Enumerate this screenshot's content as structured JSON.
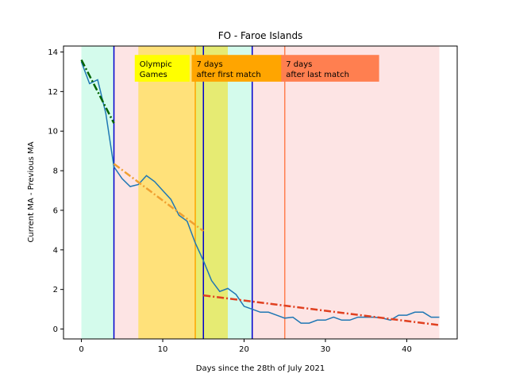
{
  "chart_data": {
    "type": "line",
    "title": "FO - Faroe Islands",
    "xlabel": "Days since the 28th of July 2021",
    "ylabel": "Current MA - Previous MA",
    "xlim": [
      -2.2,
      46.2
    ],
    "ylim": [
      -0.5,
      14.3
    ],
    "xticks": [
      0,
      10,
      20,
      30,
      40
    ],
    "yticks": [
      0,
      2,
      4,
      6,
      8,
      10,
      12,
      14
    ],
    "grid": false,
    "series": [
      {
        "color": "#1f77b4",
        "x": [
          0,
          1,
          2,
          3,
          4,
          5,
          6,
          7,
          8,
          9,
          10,
          11,
          12,
          13,
          14,
          15,
          16,
          17,
          18,
          19,
          20,
          21,
          22,
          23,
          24,
          25,
          26,
          27,
          28,
          29,
          30,
          31,
          32,
          33,
          34,
          35,
          36,
          37,
          38,
          39,
          40,
          41,
          42,
          43,
          44
        ],
        "y": [
          13.5,
          12.4,
          12.6,
          10.9,
          8.2,
          7.6,
          7.2,
          7.3,
          7.75,
          7.45,
          7.0,
          6.55,
          5.75,
          5.45,
          4.35,
          3.45,
          2.45,
          1.9,
          2.05,
          1.75,
          1.15,
          1.0,
          0.85,
          0.85,
          0.7,
          0.55,
          0.6,
          0.3,
          0.3,
          0.45,
          0.45,
          0.6,
          0.45,
          0.45,
          0.6,
          0.6,
          0.6,
          0.55,
          0.45,
          0.7,
          0.7,
          0.85,
          0.85,
          0.6,
          0.6
        ]
      }
    ],
    "trend_lines": [
      {
        "color": "#006400",
        "x": [
          0,
          4
        ],
        "y": [
          13.6,
          10.4
        ]
      },
      {
        "color": "#f0a030",
        "x": [
          4,
          15
        ],
        "y": [
          8.35,
          4.95
        ]
      },
      {
        "color": "#e04020",
        "x": [
          15,
          44
        ],
        "y": [
          1.7,
          0.2
        ]
      }
    ],
    "bands": [
      {
        "x0": 0,
        "x1": 4,
        "color": "#d4fbec"
      },
      {
        "x0": 4,
        "x1": 15,
        "color": "#fde4e4"
      },
      {
        "x0": 15,
        "x1": 21,
        "color": "#d4fbec"
      },
      {
        "x0": 21,
        "x1": 44,
        "color": "#fde4e4"
      },
      {
        "x0": 7,
        "x1": 14,
        "color": "#ffe17a"
      },
      {
        "x0": 14,
        "x1": 18,
        "color": "#e6eb73"
      }
    ],
    "vlines": [
      {
        "x": 4,
        "color": "#0000cc"
      },
      {
        "x": 15,
        "color": "#0000cc"
      },
      {
        "x": 21,
        "color": "#0000cc"
      },
      {
        "x": 14,
        "color": "#ffa500"
      },
      {
        "x": 25,
        "color": "#ff7f50"
      }
    ],
    "annotations": [
      {
        "lines": [
          "Olympic",
          "Games"
        ],
        "x": 7,
        "bg": "#ffff00",
        "box_x1": 13.3
      },
      {
        "lines": [
          "7 days",
          "after first match"
        ],
        "x": 14,
        "bg": "#ffa500",
        "box_x1": 24.9
      },
      {
        "lines": [
          "7 days",
          "after last match"
        ],
        "x": 25,
        "bg": "#ff7f50",
        "box_x1": 36.6
      }
    ]
  }
}
